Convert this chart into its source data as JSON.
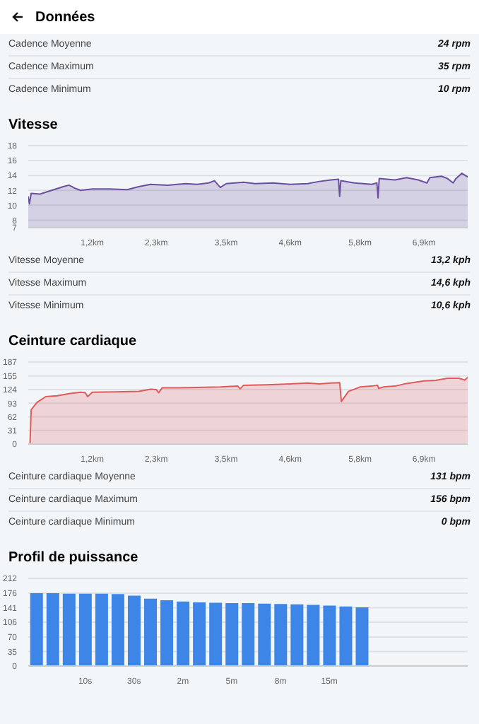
{
  "chart_data": [
    {
      "type": "other",
      "title": "Données",
      "annotations": [
        "Cadence Moyenne",
        "24 rpm",
        "Cadence Maximum",
        "35 rpm",
        "Cadence Minimum",
        "10 rpm"
      ]
    },
    {
      "type": "area",
      "title": "Vitesse",
      "x": [
        0.1,
        0.12,
        0.15,
        0.3,
        0.5,
        0.7,
        0.8,
        0.9,
        1.0,
        1.2,
        1.5,
        1.8,
        2.0,
        2.2,
        2.5,
        2.8,
        3.0,
        3.2,
        3.3,
        3.4,
        3.5,
        3.8,
        4.0,
        4.3,
        4.6,
        4.9,
        5.1,
        5.3,
        5.43,
        5.45,
        5.47,
        5.7,
        6.0,
        6.09,
        6.11,
        6.13,
        6.4,
        6.6,
        6.8,
        6.95,
        7.0,
        7.2,
        7.3,
        7.4,
        7.45,
        7.55,
        7.65
      ],
      "series": [
        {
          "color": "#6b4f9e",
          "values": [
            11.2,
            10.2,
            11.6,
            11.5,
            12.0,
            12.5,
            12.7,
            12.3,
            12.0,
            12.2,
            12.2,
            12.1,
            12.5,
            12.8,
            12.7,
            12.9,
            12.8,
            13.0,
            13.3,
            12.4,
            12.9,
            13.1,
            12.9,
            13.0,
            12.8,
            12.9,
            13.2,
            13.4,
            13.5,
            11.2,
            13.3,
            13.0,
            12.8,
            13.0,
            11.0,
            13.6,
            13.4,
            13.7,
            13.4,
            13.0,
            13.7,
            13.9,
            13.6,
            13.0,
            13.6,
            14.3,
            13.8
          ]
        }
      ],
      "xlim": [
        0.1,
        7.65
      ],
      "xticks": [
        {
          "value": 1.2,
          "label": "1,2km"
        },
        {
          "value": 2.3,
          "label": "2,3km"
        },
        {
          "value": 3.5,
          "label": "3,5km"
        },
        {
          "value": 4.6,
          "label": "4,6km"
        },
        {
          "value": 5.8,
          "label": "5,8km"
        },
        {
          "value": 6.9,
          "label": "6,9km"
        }
      ],
      "ylim": [
        7,
        18
      ],
      "yticks": [
        7,
        8,
        10,
        12,
        14,
        16,
        18
      ],
      "grid": "y",
      "annotations": [
        "Vitesse Moyenne",
        "13,2 kph",
        "Vitesse Maximum",
        "14,6 kph",
        "Vitesse Minimum",
        "10,6 kph"
      ]
    },
    {
      "type": "area",
      "title": "Ceinture cardiaque",
      "x": [
        0.1,
        0.13,
        0.15,
        0.25,
        0.4,
        0.6,
        0.8,
        1.0,
        1.08,
        1.12,
        1.2,
        1.6,
        2.0,
        2.2,
        2.3,
        2.34,
        2.4,
        2.6,
        3.0,
        3.4,
        3.7,
        3.74,
        3.8,
        4.2,
        4.6,
        4.9,
        5.1,
        5.3,
        5.45,
        5.48,
        5.6,
        5.8,
        6.0,
        6.1,
        6.12,
        6.2,
        6.4,
        6.6,
        6.9,
        7.1,
        7.3,
        7.5,
        7.6,
        7.65
      ],
      "series": [
        {
          "color": "#e05a5a",
          "values": [
            0,
            0,
            78,
            95,
            108,
            110,
            115,
            118,
            117,
            108,
            118,
            119,
            120,
            125,
            124,
            117,
            128,
            128,
            129,
            130,
            132,
            126,
            134,
            135,
            137,
            139,
            137,
            139,
            140,
            97,
            120,
            130,
            132,
            134,
            127,
            130,
            132,
            138,
            144,
            145,
            150,
            150,
            146,
            152
          ]
        }
      ],
      "xlim": [
        0.1,
        7.65
      ],
      "xticks": [
        {
          "value": 1.2,
          "label": "1,2km"
        },
        {
          "value": 2.3,
          "label": "2,3km"
        },
        {
          "value": 3.5,
          "label": "3,5km"
        },
        {
          "value": 4.6,
          "label": "4,6km"
        },
        {
          "value": 5.8,
          "label": "5,8km"
        },
        {
          "value": 6.9,
          "label": "6,9km"
        }
      ],
      "ylim": [
        0,
        187
      ],
      "yticks": [
        0,
        31,
        62,
        93,
        124,
        155,
        187
      ],
      "grid": "y",
      "annotations": [
        "Ceinture cardiaque Moyenne",
        "131 bpm",
        "Ceinture cardiaque Maximum",
        "156 bpm",
        "Ceinture cardiaque Minimum",
        "0 bpm"
      ]
    },
    {
      "type": "bar",
      "title": "Profil de puissance",
      "categories": [
        null,
        null,
        null,
        "10s",
        null,
        null,
        "30s",
        null,
        null,
        "2m",
        null,
        null,
        "5m",
        null,
        null,
        "8m",
        null,
        null,
        "15m",
        null,
        null,
        null,
        null,
        null,
        null,
        null,
        null
      ],
      "values": [
        176,
        176,
        175,
        175,
        175,
        174,
        170,
        163,
        159,
        156,
        154,
        153,
        152,
        152,
        151,
        150,
        149,
        148,
        146,
        144,
        142,
        null,
        null,
        null,
        null,
        null,
        null
      ],
      "color": "#3d86e8",
      "ylim": [
        0,
        212
      ],
      "yticks": [
        0,
        35,
        70,
        106,
        141,
        176,
        212
      ],
      "grid": "y"
    }
  ]
}
